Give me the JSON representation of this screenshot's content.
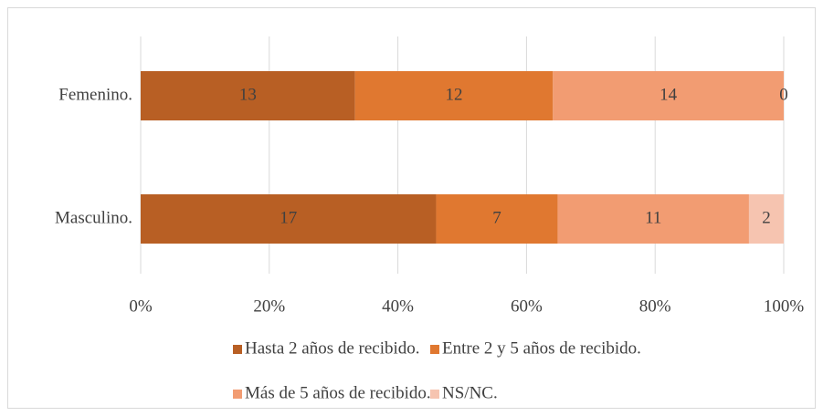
{
  "chart_data": {
    "type": "bar",
    "orientation": "horizontal",
    "stacking": "percent",
    "categories": [
      "Femenino.",
      "Masculino."
    ],
    "series": [
      {
        "name": "Hasta 2 años de recibido.",
        "color": "#b85f24",
        "values": [
          13,
          17
        ]
      },
      {
        "name": "Entre 2 y 5 años de recibido.",
        "color": "#e07830",
        "values": [
          12,
          7
        ]
      },
      {
        "name": "Más de 5 años de recibido.",
        "color": "#f29c72",
        "values": [
          14,
          11
        ]
      },
      {
        "name": "NS/NC.",
        "color": "#f6c4b0",
        "values": [
          0,
          2
        ]
      }
    ],
    "xlim": [
      0,
      100
    ],
    "xticks": [
      {
        "value": 0,
        "label": "0%"
      },
      {
        "value": 20,
        "label": "20%"
      },
      {
        "value": 40,
        "label": "40%"
      },
      {
        "value": 60,
        "label": "60%"
      },
      {
        "value": 80,
        "label": "80%"
      },
      {
        "value": 100,
        "label": "100%"
      }
    ],
    "grid": true,
    "legend": "bottom"
  }
}
